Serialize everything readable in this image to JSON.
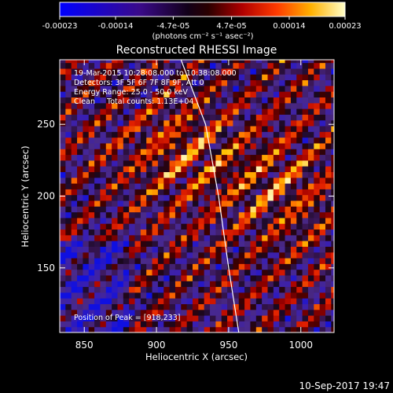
{
  "colorbar": {
    "ticks": [
      "-0.00023",
      "-0.00014",
      "-4.7e-05",
      "4.7e-05",
      "0.00014",
      "0.00023"
    ],
    "tick_values": [
      -0.00023,
      -0.00014,
      -4.7e-05,
      4.7e-05,
      0.00014,
      0.00023
    ],
    "range": [
      -0.00023,
      0.00023
    ],
    "unit_label": "(photons cm⁻² s⁻¹ asec⁻²)"
  },
  "chart_data": {
    "type": "heatmap",
    "title": "Reconstructed RHESSI Image",
    "xlabel": "Heliocentric X (arcsec)",
    "ylabel": "Heliocentric Y (arcsec)",
    "xlim": [
      833,
      1023
    ],
    "ylim": [
      105,
      295
    ],
    "xticks": [
      850,
      900,
      950,
      1000
    ],
    "yticks": [
      150,
      200,
      250
    ],
    "xtick_labels": [
      "850",
      "900",
      "950",
      "1000"
    ],
    "ytick_labels": [
      "150",
      "200",
      "250"
    ],
    "limb_curve": [
      [
        917,
        295
      ],
      [
        934,
        250
      ],
      [
        943,
        200
      ],
      [
        950,
        150
      ],
      [
        957,
        105
      ]
    ],
    "info_lines": [
      "19-Mar-2015 10:28:08.000 to 10:38:08.000",
      "Detectors: 3F 5F 6F 7F 8F 9F, Att 0",
      "Energy Range: 25.0 - 50.0 keV",
      "Clean     Total counts: 1.13E+04"
    ],
    "peak_label": "Position of Peak = [918,233]",
    "peak": [
      918,
      233
    ]
  },
  "footer": {
    "timestamp": "10-Sep-2017 19:47"
  }
}
